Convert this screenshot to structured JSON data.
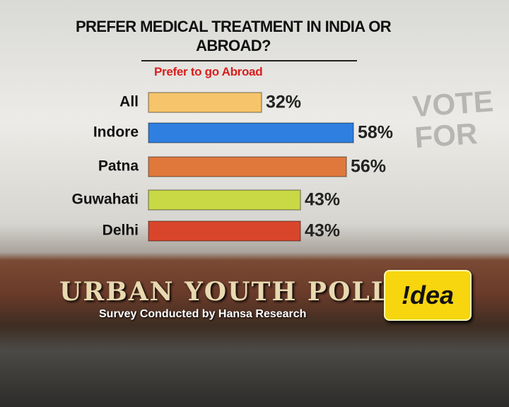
{
  "chart_data": {
    "type": "bar",
    "orientation": "horizontal",
    "title": "PREFER MEDICAL TREATMENT IN INDIA OR ABROAD?",
    "subtitle": "Prefer to go Abroad",
    "categories": [
      "All",
      "Indore",
      "Patna",
      "Guwahati",
      "Delhi"
    ],
    "values": [
      32,
      58,
      56,
      43,
      43
    ],
    "value_labels": [
      "32%",
      "58%",
      "56%",
      "43%",
      "43%"
    ],
    "colors": [
      "#f6c46a",
      "#2f7fe0",
      "#e0783c",
      "#c9d845",
      "#d9452b"
    ]
  },
  "banner": {
    "title": "URBAN YOUTH POLL",
    "credit": "Survey Conducted by Hansa Research",
    "brand": "!dea",
    "graffiti": "VOTE FOR"
  }
}
